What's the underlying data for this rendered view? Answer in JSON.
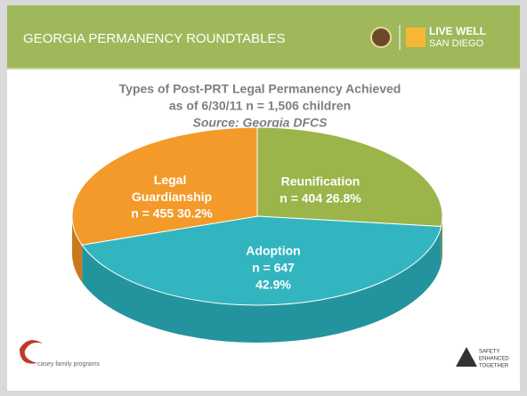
{
  "header": {
    "title": "GEORGIA PERMANENCY ROUNDTABLES",
    "logo_line1": "LIVE WELL",
    "logo_line2": "SAN DIEGO"
  },
  "footer": {
    "left_logo": "casey family programs",
    "right_logo": [
      "SAFETY",
      "ENHANCED",
      "TOGETHER"
    ]
  },
  "chart_data": {
    "type": "pie",
    "title": "Types of Post-PRT Legal Permanency Achieved",
    "subtitle": "as of 6/30/11  n = 1,506 children",
    "source": "Source: Georgia DFCS",
    "categories": [
      "Reunification",
      "Adoption",
      "Legal Guardianship"
    ],
    "values": [
      26.8,
      42.9,
      30.2
    ],
    "value_labels": [
      [
        "n = 404  26.8%"
      ],
      [
        "n = 647",
        "42.9%"
      ],
      [
        "n = 455  30.2%"
      ]
    ],
    "colors": [
      "#9bb54a",
      "#33b5bf",
      "#f39a2b"
    ],
    "side_colors": [
      "#7a9236",
      "#23949d",
      "#c97a1c"
    ]
  }
}
